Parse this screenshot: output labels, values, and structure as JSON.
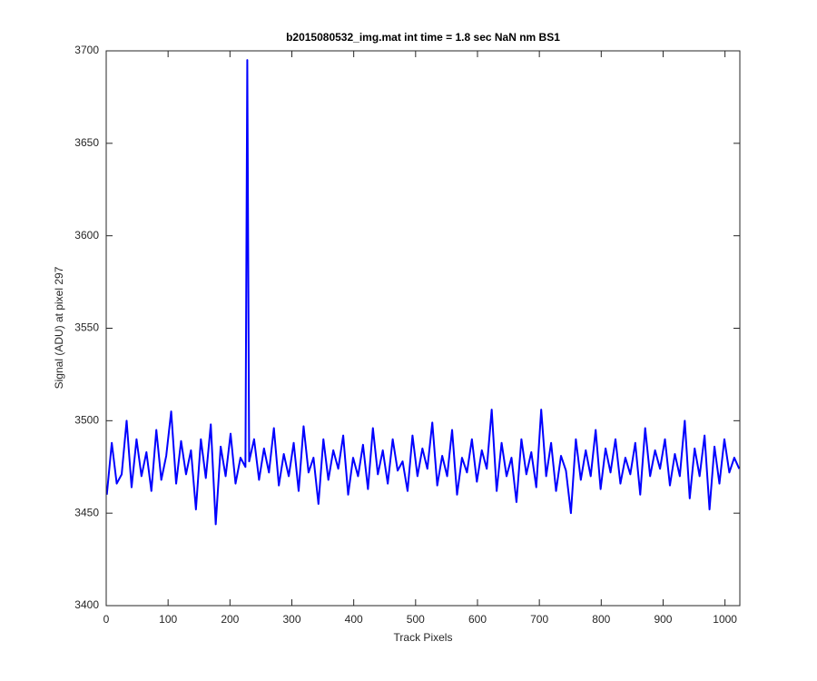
{
  "chart_data": {
    "type": "line",
    "title": "b2015080532_img.mat int time = 1.8 sec  NaN nm BS1",
    "xlabel": "Track Pixels",
    "ylabel": "Signal (ADU) at pixel 297",
    "color": "#0000ff",
    "x": [
      1,
      9,
      17,
      25,
      33,
      41,
      49,
      57,
      65,
      73,
      81,
      89,
      97,
      105,
      113,
      121,
      129,
      137,
      145,
      153,
      161,
      169,
      177,
      185,
      193,
      201,
      209,
      217,
      225,
      228,
      231,
      239,
      247,
      255,
      263,
      271,
      279,
      287,
      295,
      303,
      311,
      319,
      327,
      335,
      343,
      351,
      359,
      367,
      375,
      383,
      391,
      399,
      407,
      415,
      423,
      431,
      439,
      447,
      455,
      463,
      471,
      479,
      487,
      495,
      503,
      511,
      519,
      527,
      535,
      543,
      551,
      559,
      567,
      575,
      583,
      591,
      599,
      607,
      615,
      623,
      631,
      639,
      647,
      655,
      663,
      671,
      679,
      687,
      695,
      703,
      711,
      719,
      727,
      735,
      743,
      751,
      759,
      767,
      775,
      783,
      791,
      799,
      807,
      815,
      823,
      831,
      839,
      847,
      855,
      863,
      871,
      879,
      887,
      895,
      903,
      911,
      919,
      927,
      935,
      943,
      951,
      959,
      967,
      975,
      983,
      991,
      999,
      1007,
      1015,
      1023
    ],
    "values": [
      3460,
      3488,
      3466,
      3471,
      3500,
      3464,
      3490,
      3470,
      3483,
      3462,
      3495,
      3468,
      3481,
      3505,
      3466,
      3489,
      3471,
      3484,
      3452,
      3490,
      3469,
      3498,
      3444,
      3486,
      3470,
      3493,
      3466,
      3480,
      3475,
      3695,
      3478,
      3490,
      3468,
      3485,
      3472,
      3496,
      3465,
      3482,
      3470,
      3488,
      3462,
      3497,
      3472,
      3480,
      3455,
      3490,
      3468,
      3484,
      3474,
      3492,
      3460,
      3480,
      3470,
      3487,
      3463,
      3496,
      3471,
      3484,
      3466,
      3490,
      3473,
      3478,
      3462,
      3492,
      3470,
      3485,
      3474,
      3499,
      3465,
      3481,
      3470,
      3495,
      3460,
      3480,
      3472,
      3490,
      3467,
      3484,
      3474,
      3506,
      3462,
      3488,
      3470,
      3480,
      3456,
      3490,
      3471,
      3483,
      3464,
      3506,
      3470,
      3488,
      3462,
      3481,
      3473,
      3450,
      3490,
      3468,
      3484,
      3470,
      3495,
      3463,
      3485,
      3472,
      3490,
      3466,
      3480,
      3471,
      3488,
      3460,
      3496,
      3470,
      3484,
      3474,
      3490,
      3465,
      3482,
      3470,
      3500,
      3458,
      3485,
      3470,
      3492,
      3452,
      3486,
      3466,
      3490,
      3472,
      3480,
      3474
    ],
    "xlim": [
      0,
      1024
    ],
    "xticks": [
      0,
      100,
      200,
      300,
      400,
      500,
      600,
      700,
      800,
      900,
      1000
    ],
    "ylim": [
      3400,
      3700
    ],
    "yticks": [
      3400,
      3450,
      3500,
      3550,
      3600,
      3650,
      3700
    ]
  }
}
